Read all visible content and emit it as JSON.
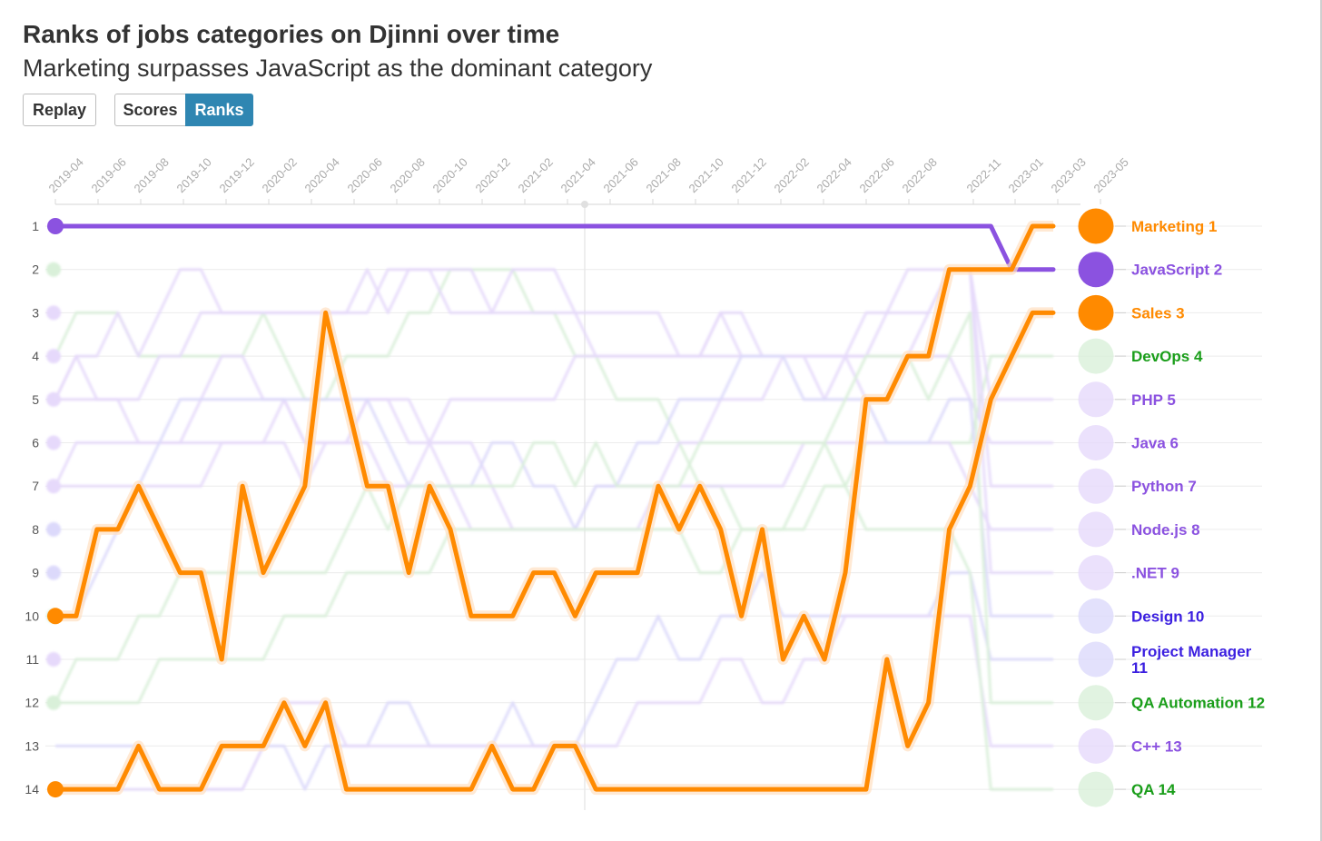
{
  "header": {
    "title": "Ranks of jobs categories on Djinni over time",
    "subtitle": "Marketing surpasses JavaScript as the dominant category"
  },
  "controls": {
    "replay_label": "Replay",
    "scores_label": "Scores",
    "ranks_label": "Ranks",
    "active": "Ranks"
  },
  "colors": {
    "orange": "#ff8a00",
    "purple": "#8b52e0",
    "green": "#1a9e1a",
    "blue": "#3b1fe0",
    "purple_faint": "#e6d9fb",
    "green_faint": "#d9f0d9",
    "blue_faint": "#dcd9fb"
  },
  "chart_data": {
    "type": "line",
    "title": "Ranks of jobs categories on Djinni over time",
    "subtitle": "Marketing surpasses JavaScript as the dominant category",
    "x_tick_labels": [
      "2019-04",
      "2019-06",
      "2019-08",
      "2019-10",
      "2019-12",
      "2020-02",
      "2020-04",
      "2020-06",
      "2020-08",
      "2020-10",
      "2020-12",
      "2021-02",
      "2021-04",
      "2021-06",
      "2021-08",
      "2021-10",
      "2021-12",
      "2022-02",
      "2022-04",
      "2022-06",
      "2022-08",
      "2022-11",
      "2023-01",
      "2023-03",
      "2023-05"
    ],
    "y_ticks": [
      1,
      2,
      3,
      4,
      5,
      6,
      7,
      8,
      9,
      10,
      11,
      12,
      13,
      14
    ],
    "y_reversed": true,
    "grid": true,
    "legend_position": "right end labels",
    "highlighted_series": [
      {
        "name": "Marketing",
        "end_label": "Marketing 1",
        "color": "#ff8a00",
        "values": [
          10,
          10,
          8,
          8,
          7,
          8,
          9,
          9,
          11,
          7,
          9,
          8,
          7,
          3,
          5,
          7,
          7,
          9,
          7,
          8,
          10,
          10,
          10,
          9,
          9,
          10,
          9,
          9,
          9,
          7,
          8,
          7,
          8,
          10,
          8,
          11,
          10,
          11,
          9,
          5,
          5,
          4,
          4,
          2,
          2,
          2,
          2,
          1,
          1
        ]
      },
      {
        "name": "Sales",
        "end_label": "Sales 3",
        "color": "#ff8a00",
        "values": [
          14,
          14,
          14,
          14,
          13,
          14,
          14,
          14,
          13,
          13,
          13,
          12,
          13,
          12,
          14,
          14,
          14,
          14,
          14,
          14,
          14,
          13,
          14,
          14,
          13,
          13,
          14,
          14,
          14,
          14,
          14,
          14,
          14,
          14,
          14,
          14,
          14,
          14,
          14,
          14,
          11,
          13,
          12,
          8,
          7,
          5,
          4,
          3,
          3
        ]
      },
      {
        "name": "JavaScript",
        "end_label": "JavaScript 2",
        "color": "#8b52e0",
        "values": [
          1,
          1,
          1,
          1,
          1,
          1,
          1,
          1,
          1,
          1,
          1,
          1,
          1,
          1,
          1,
          1,
          1,
          1,
          1,
          1,
          1,
          1,
          1,
          1,
          1,
          1,
          1,
          1,
          1,
          1,
          1,
          1,
          1,
          1,
          1,
          1,
          1,
          1,
          1,
          1,
          1,
          1,
          1,
          1,
          1,
          1,
          2,
          2,
          2
        ]
      }
    ],
    "faded_series": [
      {
        "name": "DevOps",
        "end_label": "DevOps 4",
        "color": "#1a9e1a"
      },
      {
        "name": "PHP",
        "end_label": "PHP 5",
        "color": "#8b52e0"
      },
      {
        "name": "Java",
        "end_label": "Java 6",
        "color": "#8b52e0"
      },
      {
        "name": "Python",
        "end_label": "Python 7",
        "color": "#8b52e0"
      },
      {
        "name": "Node.js",
        "end_label": "Node.js 8",
        "color": "#8b52e0"
      },
      {
        "name": ".NET",
        "end_label": ".NET 9",
        "color": "#8b52e0"
      },
      {
        "name": "Design",
        "end_label": "Design 10",
        "color": "#3b1fe0"
      },
      {
        "name": "Project Manager",
        "end_label": "Project Manager 11",
        "color": "#3b1fe0"
      },
      {
        "name": "QA Automation",
        "end_label": "QA Automation 12",
        "color": "#1a9e1a"
      },
      {
        "name": "C++",
        "end_label": "C++ 13",
        "color": "#8b52e0"
      },
      {
        "name": "QA",
        "end_label": "QA 14",
        "color": "#1a9e1a"
      }
    ]
  }
}
